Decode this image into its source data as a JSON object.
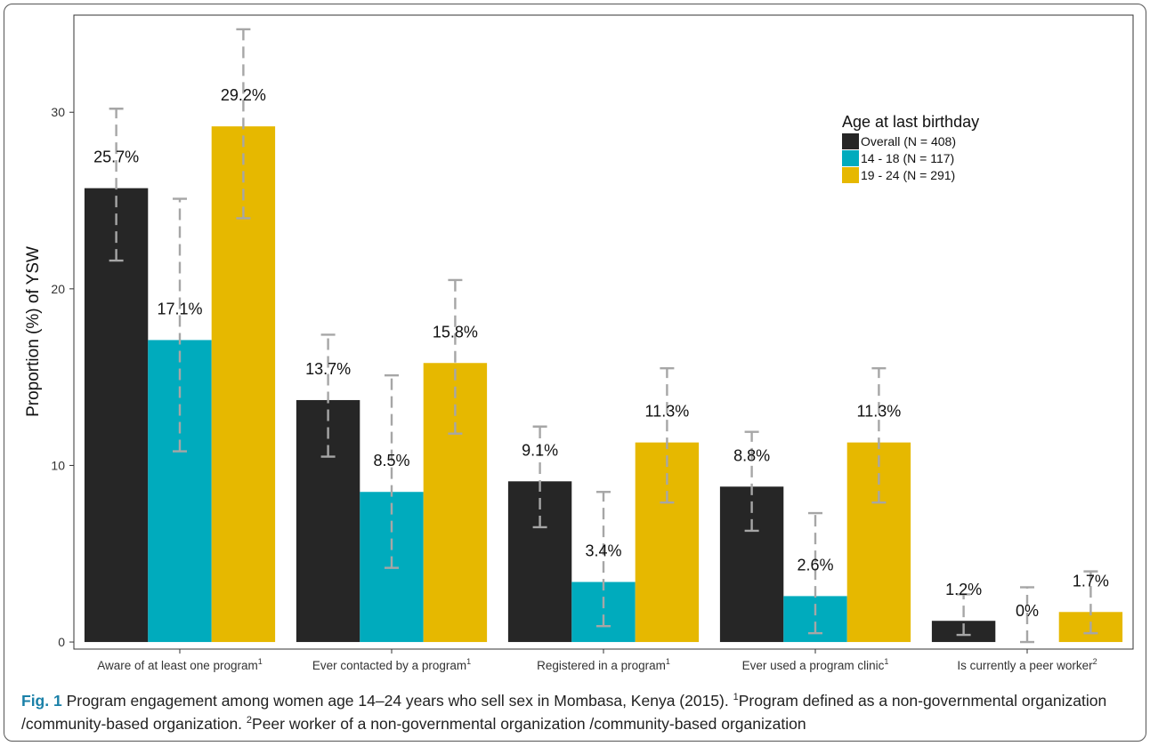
{
  "chart_data": {
    "type": "bar",
    "ylabel": "Proportion (%) of YSW",
    "ylim": [
      -0.4,
      35.5
    ],
    "yticks": [
      0,
      10,
      20,
      30
    ],
    "grid": false,
    "legend": {
      "title": "Age at last birthday",
      "position": "top-right"
    },
    "categories": [
      {
        "label": "Aware of at least one program",
        "sup": "1"
      },
      {
        "label": "Ever contacted by a program",
        "sup": "1"
      },
      {
        "label": "Registered in a program",
        "sup": "1"
      },
      {
        "label": "Ever used a program clinic",
        "sup": "1"
      },
      {
        "label": "Is currently a peer worker",
        "sup": "2"
      }
    ],
    "series": [
      {
        "name": "Overall (N = 408)",
        "color": "#262626",
        "values": [
          25.7,
          13.7,
          9.1,
          8.8,
          1.2
        ],
        "labels": [
          "25.7%",
          "13.7%",
          "9.1%",
          "8.8%",
          "1.2%"
        ],
        "ci_low": [
          21.6,
          10.5,
          6.5,
          6.3,
          0.4
        ],
        "ci_high": [
          30.2,
          17.4,
          12.2,
          11.9,
          2.7
        ]
      },
      {
        "name": "14 - 18 (N = 117)",
        "color": "#00abbd",
        "values": [
          17.1,
          8.5,
          3.4,
          2.6,
          0.0
        ],
        "labels": [
          "17.1%",
          "8.5%",
          "3.4%",
          "2.6%",
          "0%"
        ],
        "ci_low": [
          10.8,
          4.2,
          0.9,
          0.5,
          0.0
        ],
        "ci_high": [
          25.1,
          15.1,
          8.5,
          7.3,
          3.1
        ]
      },
      {
        "name": "19 - 24 (N = 291)",
        "color": "#e6b800",
        "values": [
          29.2,
          15.8,
          11.3,
          11.3,
          1.7
        ],
        "labels": [
          "29.2%",
          "15.8%",
          "11.3%",
          "11.3%",
          "1.7%"
        ],
        "ci_low": [
          24.0,
          11.8,
          7.9,
          7.9,
          0.5
        ],
        "ci_high": [
          34.7,
          20.5,
          15.5,
          15.5,
          4.0
        ]
      }
    ],
    "error_bar_color": "#a6a6a6"
  },
  "caption": {
    "fig_label": "Fig. 1",
    "text1": " Program engagement among women age 14–24 years who sell sex in Mombasa, Kenya (2015). ",
    "sup1": "1",
    "text2": "Program defined as a non-governmental organization /community-based organization. ",
    "sup2": "2",
    "text3": "Peer worker of a non-governmental organization /community-based organization"
  }
}
